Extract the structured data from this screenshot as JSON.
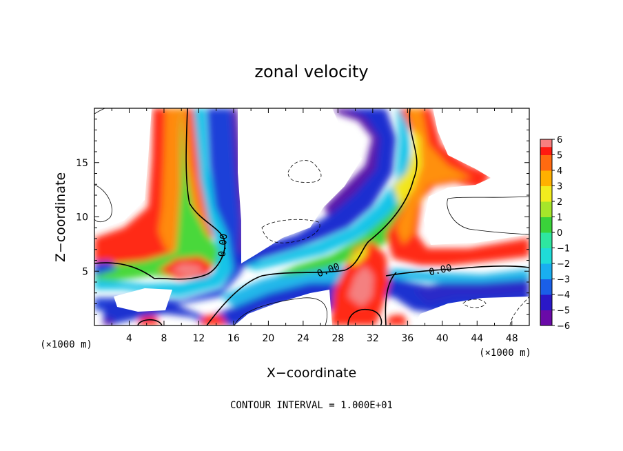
{
  "chart_data": {
    "type": "heatmap",
    "title": "zonal velocity",
    "xlabel": "X−coordinate",
    "ylabel": "Z−coordinate",
    "x_units": "(×1000 m)",
    "y_units": "(×1000 m)",
    "xlim": [
      0,
      50
    ],
    "ylim": [
      0,
      20
    ],
    "x_ticks": [
      4,
      8,
      12,
      16,
      20,
      24,
      28,
      32,
      36,
      40,
      44,
      48
    ],
    "y_ticks": [
      5,
      10,
      15
    ],
    "colorbar": {
      "min": -6,
      "max": 6,
      "ticks": [
        "6",
        "5",
        "4",
        "3",
        "2",
        "1",
        "0",
        "−1",
        "−2",
        "−3",
        "−4",
        "−5",
        "−6"
      ],
      "colors": [
        "#6a0aa8",
        "#2a18c8",
        "#1a5fe8",
        "#19aef0",
        "#1fdcd8",
        "#2ee6a0",
        "#3ad23a",
        "#a6e62a",
        "#f2ec1e",
        "#ffb000",
        "#ff6a10",
        "#ff1a10",
        "#f77f7f"
      ]
    },
    "contour_labels": [
      "0.00",
      "0.00",
      "0.00"
    ],
    "footer": "CONTOUR INTERVAL = 1.000E+01"
  }
}
